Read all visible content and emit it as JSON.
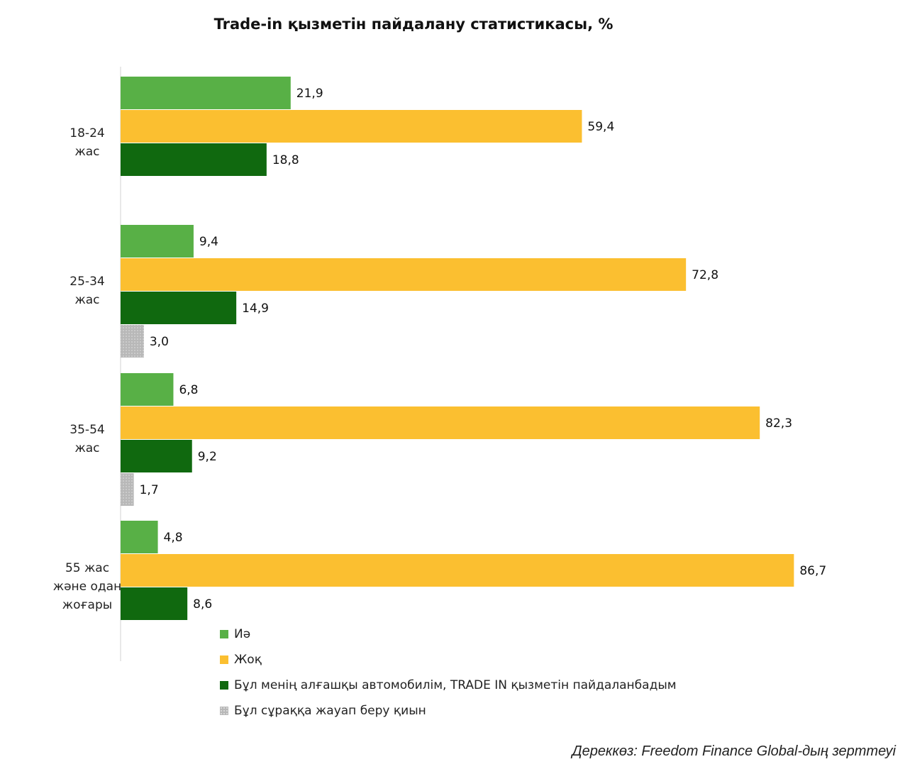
{
  "chart_data": {
    "type": "bar",
    "orientation": "horizontal",
    "title": "Trade-in қызметін пайдалану статистикасы, %",
    "categories": [
      [
        "18-24",
        "жас"
      ],
      [
        "25-34",
        "жас"
      ],
      [
        "35-54",
        "жас"
      ],
      [
        "55 жас",
        "және одан",
        "жоғары"
      ]
    ],
    "series": [
      {
        "name": "Иә",
        "color": "#58b046",
        "pattern": "solid",
        "values": [
          21.9,
          9.4,
          6.8,
          4.8
        ]
      },
      {
        "name": "Жоқ",
        "color": "#fbbf30",
        "pattern": "solid",
        "values": [
          59.4,
          72.8,
          82.3,
          86.7
        ]
      },
      {
        "name": "Бұл менің алғашқы автомобилім, TRADE IN қызметін пайдаланбадым",
        "color": "#10690f",
        "pattern": "solid",
        "values": [
          18.8,
          14.9,
          9.2,
          8.6
        ]
      },
      {
        "name": "Бұл сұраққа жауап беру қиын",
        "color": "#b8b8b8",
        "pattern": "dotted",
        "values": [
          null,
          3.0,
          1.7,
          null
        ]
      }
    ],
    "value_labels": [
      [
        "21,9",
        "9,4",
        "6,8",
        "4,8"
      ],
      [
        "59,4",
        "72,8",
        "82,3",
        "86,7"
      ],
      [
        "18,8",
        "14,9",
        "9,2",
        "8,6"
      ],
      [
        "",
        "3,0",
        "1,7",
        ""
      ]
    ],
    "xlim": [
      0,
      100
    ],
    "grid": false,
    "legend_position": "bottom-inside"
  },
  "source": "Дереккөз: Freedom Finance Global-дың зерттеуі"
}
